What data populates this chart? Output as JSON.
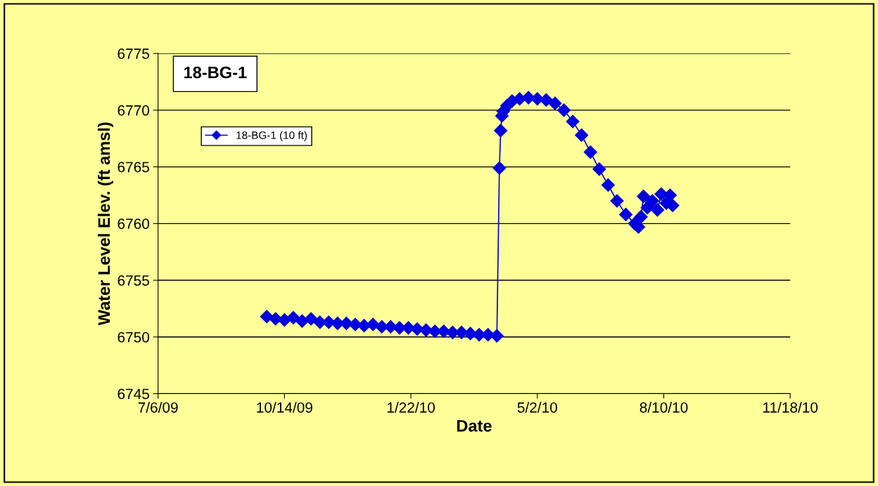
{
  "chart_data": {
    "type": "line",
    "title": "18-BG-1",
    "xlabel": "Date",
    "ylabel": "Water Level Elev. (ft amsl)",
    "xlim": [
      "2009-07-06",
      "2010-11-18"
    ],
    "xticks": [
      {
        "value": "2009-07-06",
        "label": "7/6/09"
      },
      {
        "value": "2009-10-14",
        "label": "10/14/09"
      },
      {
        "value": "2010-01-22",
        "label": "1/22/10"
      },
      {
        "value": "2010-05-02",
        "label": "5/2/10"
      },
      {
        "value": "2010-08-10",
        "label": "8/10/10"
      },
      {
        "value": "2010-11-18",
        "label": "11/18/10"
      }
    ],
    "ylim": [
      6745,
      6775
    ],
    "yticks": [
      6745,
      6750,
      6755,
      6760,
      6765,
      6770,
      6775
    ],
    "grid": "y",
    "legend": "top left",
    "marker": "diamond",
    "line_style": "solid",
    "series": [
      {
        "name": "18-BG-1 (10 ft)",
        "color": "#0000e0",
        "x": [
          "2009-09-30",
          "2009-10-07",
          "2009-10-14",
          "2009-10-21",
          "2009-10-28",
          "2009-11-04",
          "2009-11-11",
          "2009-11-18",
          "2009-11-25",
          "2009-12-02",
          "2009-12-09",
          "2009-12-16",
          "2009-12-23",
          "2009-12-30",
          "2010-01-06",
          "2010-01-13",
          "2010-01-20",
          "2010-01-27",
          "2010-02-03",
          "2010-02-10",
          "2010-02-17",
          "2010-02-24",
          "2010-03-03",
          "2010-03-10",
          "2010-03-17",
          "2010-03-24",
          "2010-03-31",
          "2010-04-02",
          "2010-04-03",
          "2010-04-04",
          "2010-04-05",
          "2010-04-08",
          "2010-04-12",
          "2010-04-18",
          "2010-04-25",
          "2010-05-02",
          "2010-05-09",
          "2010-05-16",
          "2010-05-23",
          "2010-05-30",
          "2010-06-06",
          "2010-06-13",
          "2010-06-20",
          "2010-06-27",
          "2010-07-04",
          "2010-07-11",
          "2010-07-18",
          "2010-07-21",
          "2010-07-23",
          "2010-07-25",
          "2010-07-28",
          "2010-08-01",
          "2010-08-05",
          "2010-08-08",
          "2010-08-12",
          "2010-08-15",
          "2010-08-17"
        ],
        "values": [
          6751.8,
          6751.6,
          6751.5,
          6751.7,
          6751.4,
          6751.6,
          6751.3,
          6751.3,
          6751.2,
          6751.2,
          6751.1,
          6751.0,
          6751.1,
          6750.9,
          6750.9,
          6750.8,
          6750.8,
          6750.7,
          6750.6,
          6750.5,
          6750.5,
          6750.4,
          6750.4,
          6750.3,
          6750.2,
          6750.2,
          6750.1,
          6764.9,
          6768.2,
          6769.5,
          6769.9,
          6770.4,
          6770.8,
          6771.0,
          6771.1,
          6771.0,
          6770.9,
          6770.6,
          6770.0,
          6769.0,
          6767.8,
          6766.3,
          6764.8,
          6763.4,
          6762.0,
          6760.8,
          6760.0,
          6759.7,
          6760.6,
          6762.4,
          6761.4,
          6762.0,
          6761.2,
          6762.6,
          6761.8,
          6762.5,
          6761.6
        ]
      }
    ]
  }
}
